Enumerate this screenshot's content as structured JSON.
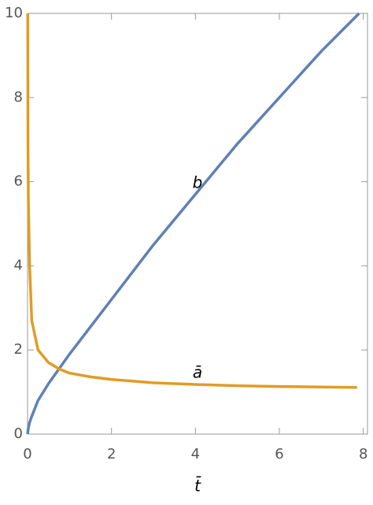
{
  "chart_data": {
    "type": "line",
    "x_label": "t̄",
    "series": [
      {
        "name": "b",
        "color": "#5e81b5",
        "x": [
          0,
          0.02,
          0.05,
          0.1,
          0.25,
          0.5,
          0.75,
          1,
          1.5,
          2,
          3,
          4,
          5,
          6,
          7,
          7.9
        ],
        "values": [
          0,
          0.15,
          0.28,
          0.42,
          0.8,
          1.2,
          1.55,
          1.9,
          2.55,
          3.2,
          4.5,
          5.7,
          6.9,
          8.0,
          9.1,
          10
        ]
      },
      {
        "name": "ā",
        "color": "#e19c24",
        "x": [
          0.005,
          0.01,
          0.02,
          0.05,
          0.1,
          0.25,
          0.5,
          0.75,
          1,
          1.5,
          2,
          3,
          4,
          5,
          6,
          7,
          7.85
        ],
        "values": [
          10,
          7,
          5.5,
          4,
          2.7,
          2.0,
          1.7,
          1.55,
          1.45,
          1.36,
          1.3,
          1.22,
          1.18,
          1.15,
          1.13,
          1.12,
          1.11
        ]
      }
    ],
    "xlim": [
      0,
      8.1
    ],
    "xticks": [
      0,
      2,
      4,
      6,
      8
    ],
    "ylim": [
      0,
      10
    ],
    "yticks": [
      0,
      2,
      4,
      6,
      8,
      10
    ]
  }
}
